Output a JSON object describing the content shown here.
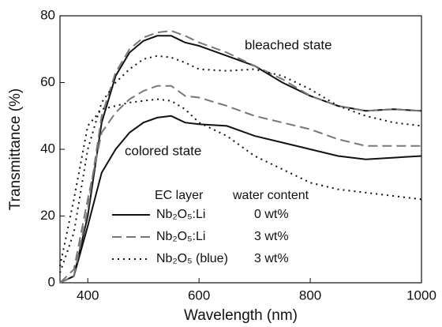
{
  "chart_data": {
    "type": "line",
    "xlabel": "Wavelength (nm)",
    "ylabel": "Transmittance (%)",
    "xlim": [
      350,
      1000
    ],
    "ylim": [
      0,
      80
    ],
    "xticks": [
      400,
      600,
      800,
      1000
    ],
    "yticks": [
      0,
      20,
      40,
      60,
      80
    ],
    "x": [
      350,
      375,
      400,
      425,
      450,
      475,
      500,
      525,
      550,
      575,
      600,
      650,
      700,
      750,
      800,
      850,
      900,
      950,
      1000
    ],
    "annotations": {
      "bleached": "bleached state",
      "colored": "colored state"
    },
    "legend_header": [
      "EC layer",
      "water content"
    ],
    "series": [
      {
        "name": "Nb₂O₅:Li",
        "water_content": "0 wt%",
        "color": "#111111",
        "dash": "solid",
        "bleached": [
          0,
          2,
          20,
          48,
          62,
          69,
          72.5,
          74,
          74,
          72,
          71,
          68,
          65,
          60,
          56,
          53,
          51.5,
          52,
          51.5
        ],
        "colored": [
          0,
          2,
          17,
          33,
          40,
          45,
          48,
          49.5,
          50,
          48,
          47.5,
          47,
          44,
          42,
          40,
          38,
          37,
          37.5,
          38
        ]
      },
      {
        "name": "Nb₂O₅:Li",
        "water_content": "3 wt%",
        "color": "#777777",
        "dash": "dashed",
        "bleached": [
          0,
          2,
          22,
          50,
          63,
          70,
          73.5,
          75,
          75.5,
          74,
          72,
          69,
          65,
          61,
          56,
          53,
          51.5,
          52,
          51.5
        ],
        "colored": [
          0,
          4,
          25,
          45,
          51,
          55,
          57.5,
          59,
          59,
          56,
          55.5,
          53,
          50,
          48,
          46,
          43,
          41,
          41,
          41
        ]
      },
      {
        "name": "Nb₂O₅  (blue)",
        "water_content": "3 wt%",
        "color": "#111111",
        "dash": "dotted",
        "bleached": [
          3,
          15,
          40,
          54,
          60,
          64,
          67,
          68,
          67.5,
          66,
          64,
          63.5,
          64,
          62,
          58,
          53,
          50,
          48,
          47
        ],
        "colored": [
          5,
          25,
          47,
          52,
          53,
          54,
          54.5,
          55,
          54.5,
          52,
          48,
          44,
          38,
          34,
          30,
          28,
          27,
          26,
          25
        ]
      }
    ]
  }
}
